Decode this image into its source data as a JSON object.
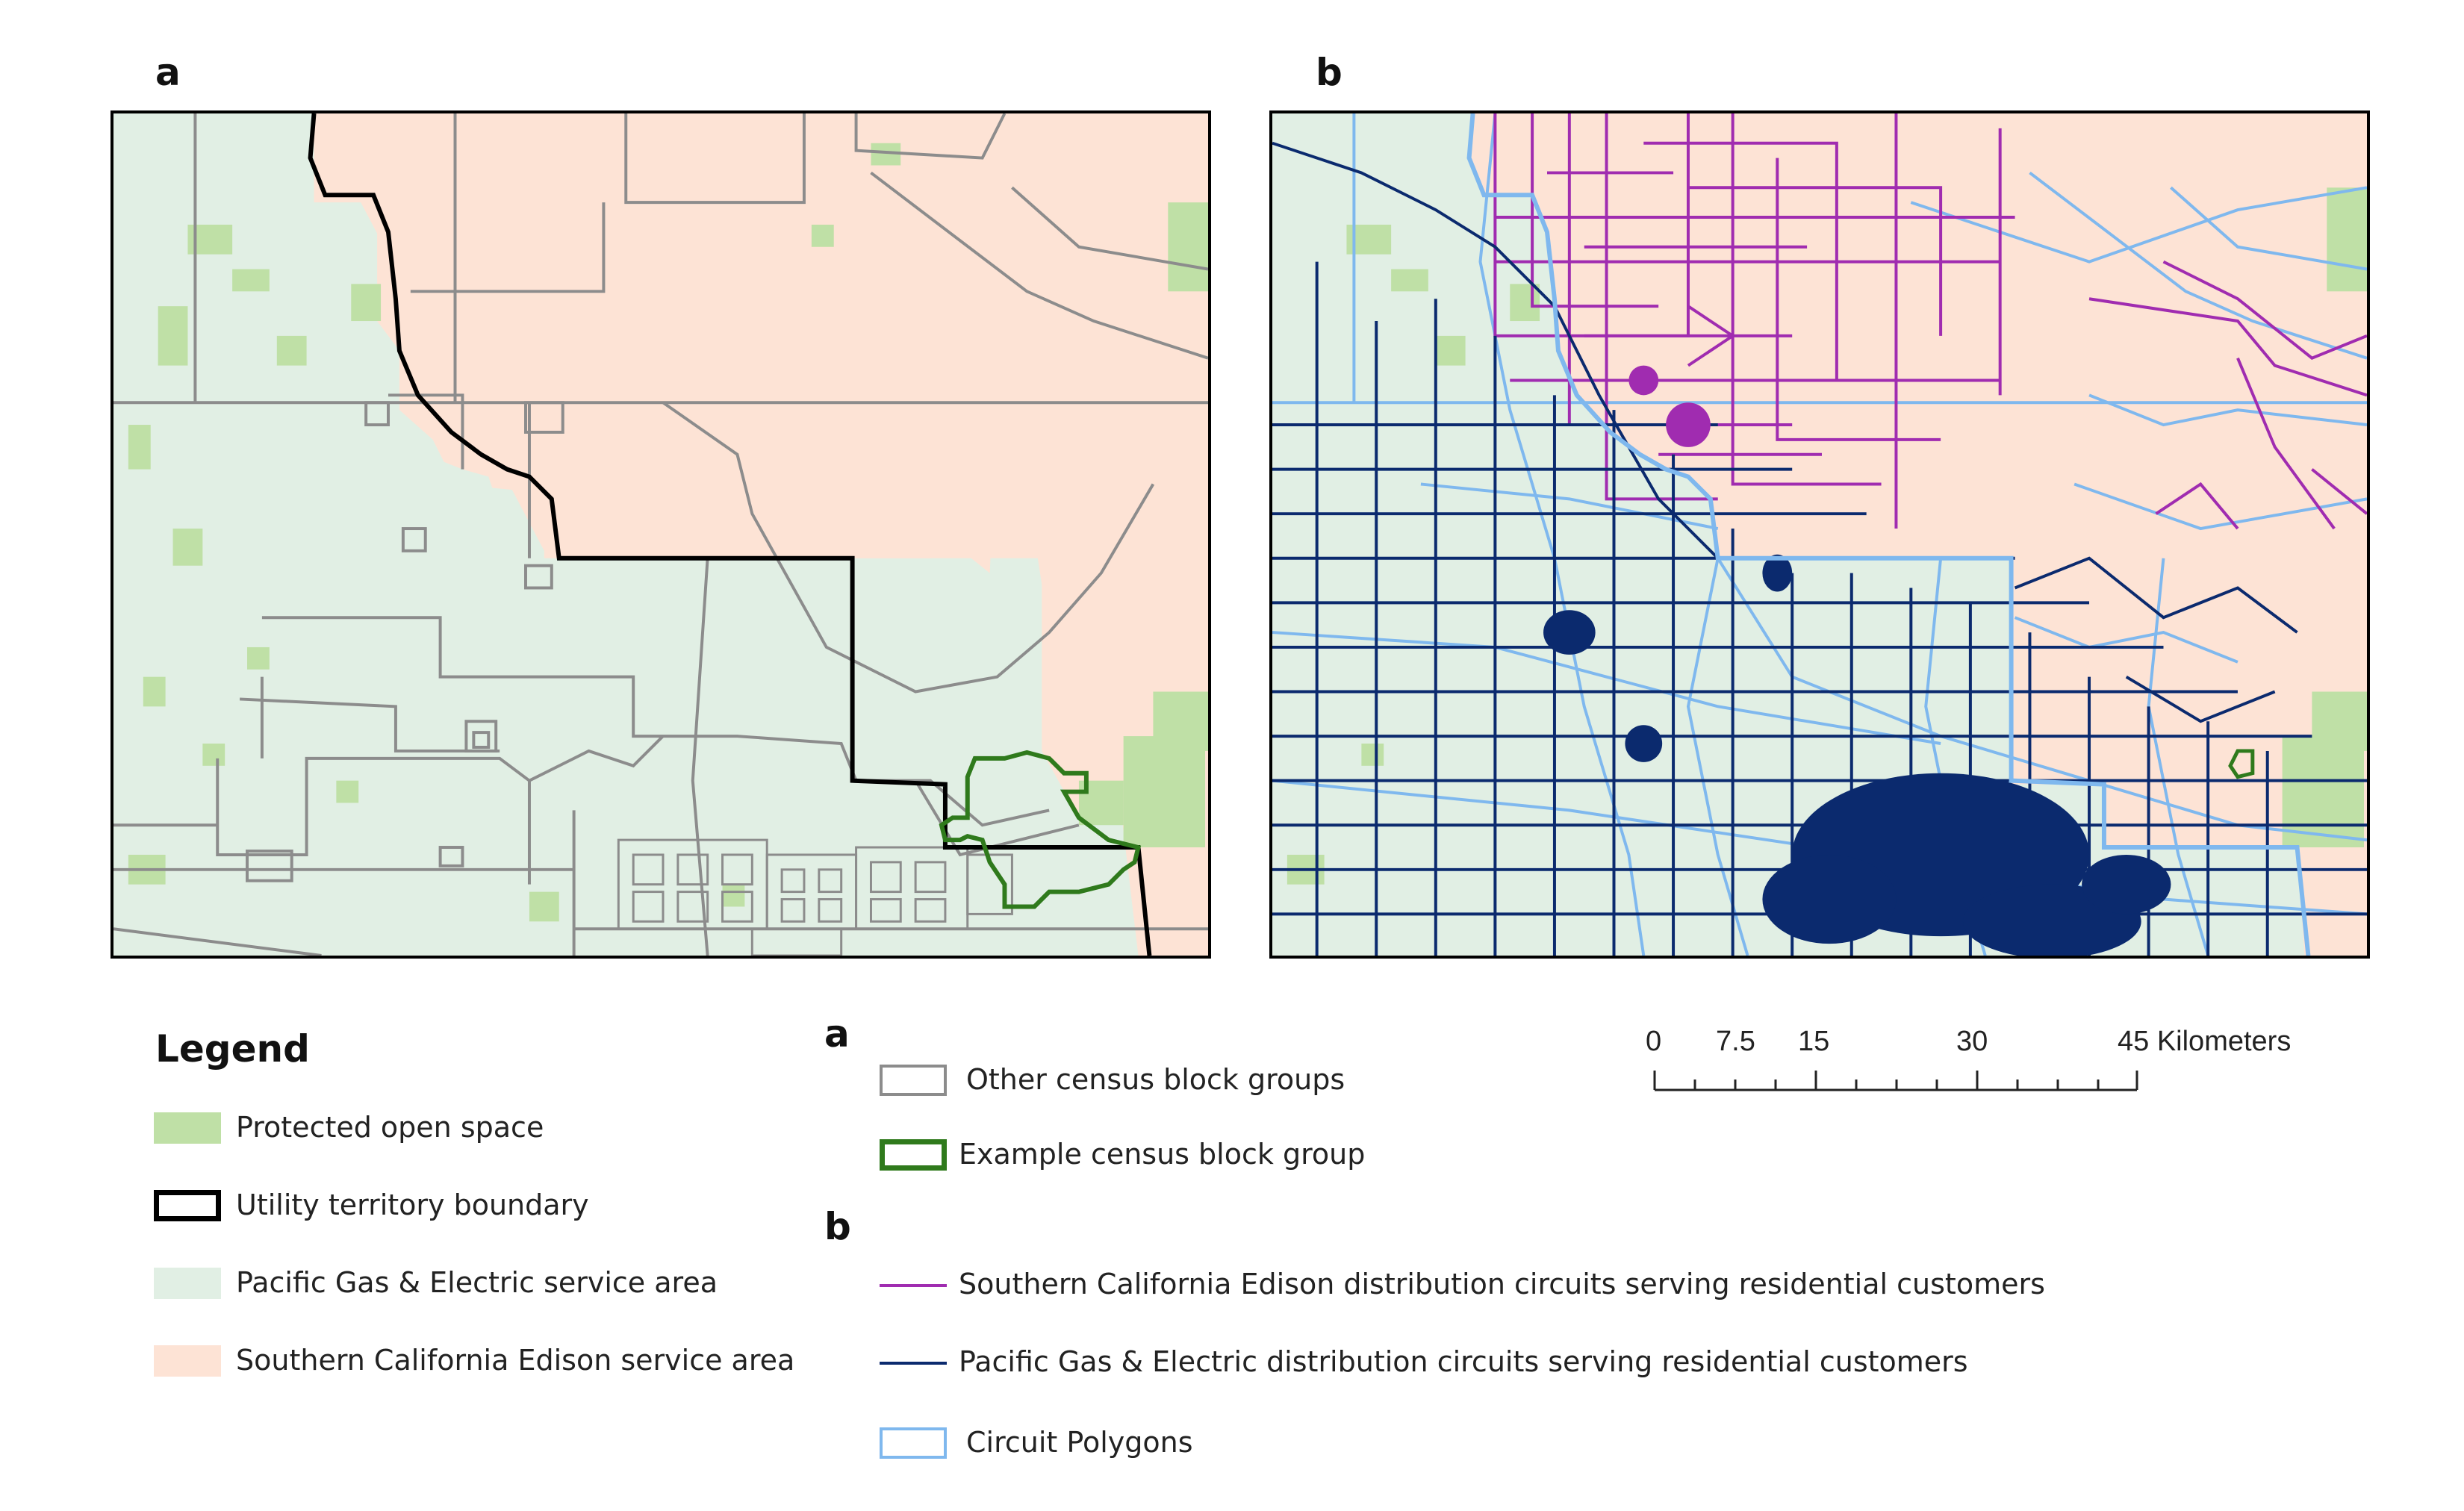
{
  "panels": {
    "a_label": "a",
    "b_label": "b"
  },
  "legend": {
    "title": "Legend",
    "general": [
      {
        "label": "Protected open space",
        "color": "#bfe0a6",
        "kind": "fill"
      },
      {
        "label": "Utility territory boundary",
        "color": "#000000",
        "kind": "outline"
      },
      {
        "label": "Pacific Gas & Electric service area",
        "color": "#e1efe4",
        "kind": "fill"
      },
      {
        "label": "Southern California Edison service area",
        "color": "#fde3d5",
        "kind": "fill"
      }
    ],
    "section_a": {
      "label": "a",
      "items": [
        {
          "label": "Other census block groups",
          "color": "#8c8c8c",
          "kind": "outline"
        },
        {
          "label": "Example census block group",
          "color": "#2f7a1c",
          "kind": "outline"
        }
      ]
    },
    "section_b": {
      "label": "b",
      "items": [
        {
          "label": "Southern California Edison distribution circuits serving residential customers",
          "color": "#a02cb0",
          "kind": "line"
        },
        {
          "label": "Pacific Gas & Electric distribution circuits serving residential customers",
          "color": "#0b2a6e",
          "kind": "line"
        },
        {
          "label": "Circuit Polygons",
          "color": "#7fb8ee",
          "kind": "outline"
        }
      ]
    }
  },
  "scale_bar": {
    "ticks": [
      "0",
      "7.5",
      "15",
      "30",
      "45 Kilometers"
    ]
  },
  "colors": {
    "sce_area": "#fde3d5",
    "pge_area": "#e1efe4",
    "protected": "#bfe0a6",
    "block_groups": "#8c8c8c",
    "example_bg": "#2f7a1c",
    "sce_circuits": "#a02cb0",
    "pge_circuits": "#0b2a6e",
    "circuit_polygons": "#7fb8ee"
  }
}
